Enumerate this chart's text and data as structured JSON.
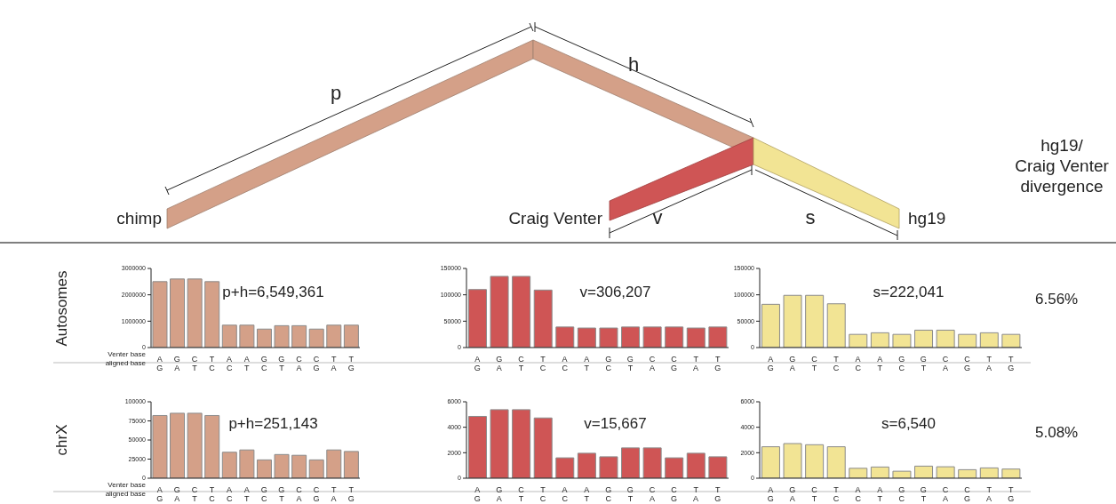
{
  "chart_data": [
    {
      "type": "other",
      "annotations": [
        "p",
        "h",
        "chimp",
        "Craig Venter",
        "v",
        "s",
        "hg19",
        "hg19/\nCraig Venter\ndivergence"
      ]
    },
    {
      "type": "bar",
      "ylabel": "Autosomes",
      "categories": [
        "A\nG",
        "G\nA",
        "C\nT",
        "T\nC",
        "A\nC",
        "A\nT",
        "G\nC",
        "G\nT",
        "C\nA",
        "C\nG",
        "T\nA",
        "T\nG"
      ],
      "values": [
        2500000,
        2600000,
        2600000,
        2500000,
        850000,
        850000,
        700000,
        830000,
        830000,
        700000,
        850000,
        850000
      ],
      "color": "#d4a088",
      "ylim": [
        0,
        3000000
      ],
      "yticks": [
        0,
        1000000,
        2000000,
        3000000
      ],
      "annotations": [
        "p+h=6,549,361",
        "Venter base",
        "aligned base"
      ]
    },
    {
      "type": "bar",
      "categories": [
        "A\nG",
        "G\nA",
        "C\nT",
        "T\nC",
        "A\nC",
        "A\nT",
        "G\nC",
        "G\nT",
        "C\nA",
        "C\nG",
        "T\nA",
        "T\nG"
      ],
      "values": [
        110000,
        135000,
        135000,
        109000,
        39000,
        37000,
        37000,
        39000,
        39000,
        39000,
        37000,
        39000
      ],
      "color": "#cf5555",
      "ylim": [
        0,
        150000
      ],
      "yticks": [
        0,
        50000,
        100000,
        150000
      ],
      "annotations": [
        "v=306,207"
      ]
    },
    {
      "type": "bar",
      "categories": [
        "A\nG",
        "G\nA",
        "C\nT",
        "T\nC",
        "A\nC",
        "A\nT",
        "G\nC",
        "G\nT",
        "C\nA",
        "C\nG",
        "T\nA",
        "T\nG"
      ],
      "values": [
        82000,
        99000,
        99000,
        83000,
        25000,
        28000,
        25000,
        33000,
        33000,
        25000,
        28000,
        25000
      ],
      "color": "#f2e494",
      "ylim": [
        0,
        150000
      ],
      "yticks": [
        0,
        50000,
        100000,
        150000
      ],
      "annotations": [
        "s=222,041",
        "6.56%"
      ]
    },
    {
      "type": "bar",
      "ylabel": "chrX",
      "categories": [
        "A\nG",
        "G\nA",
        "C\nT",
        "T\nC",
        "A\nC",
        "A\nT",
        "G\nC",
        "G\nT",
        "C\nA",
        "C\nG",
        "T\nA",
        "T\nG"
      ],
      "values": [
        82000,
        85000,
        85000,
        82000,
        34000,
        37000,
        24000,
        31000,
        30000,
        24000,
        37000,
        35000
      ],
      "color": "#d4a088",
      "ylim": [
        0,
        100000
      ],
      "yticks": [
        0,
        25000,
        50000,
        75000,
        100000
      ],
      "annotations": [
        "p+h=251,143",
        "Venter base",
        "aligned base"
      ]
    },
    {
      "type": "bar",
      "categories": [
        "A\nG",
        "G\nA",
        "C\nT",
        "T\nC",
        "A\nC",
        "A\nT",
        "G\nC",
        "G\nT",
        "C\nA",
        "C\nG",
        "T\nA",
        "T\nG"
      ],
      "values": [
        4850,
        5380,
        5380,
        4730,
        1600,
        1960,
        1680,
        2380,
        2380,
        1600,
        1960,
        1680
      ],
      "color": "#cf5555",
      "ylim": [
        0,
        6000
      ],
      "yticks": [
        0,
        2000,
        4000,
        6000
      ],
      "annotations": [
        "v=15,667"
      ]
    },
    {
      "type": "bar",
      "categories": [
        "A\nG",
        "G\nA",
        "C\nT",
        "T\nC",
        "A\nC",
        "A\nT",
        "G\nC",
        "G\nT",
        "C\nA",
        "C\nG",
        "T\nA",
        "T\nG"
      ],
      "values": [
        2470,
        2720,
        2630,
        2470,
        780,
        880,
        550,
        950,
        900,
        670,
        810,
        720
      ],
      "color": "#f2e494",
      "ylim": [
        0,
        6000
      ],
      "yticks": [
        0,
        2000,
        4000,
        6000
      ],
      "annotations": [
        "s=6,540",
        "5.08%"
      ]
    }
  ]
}
